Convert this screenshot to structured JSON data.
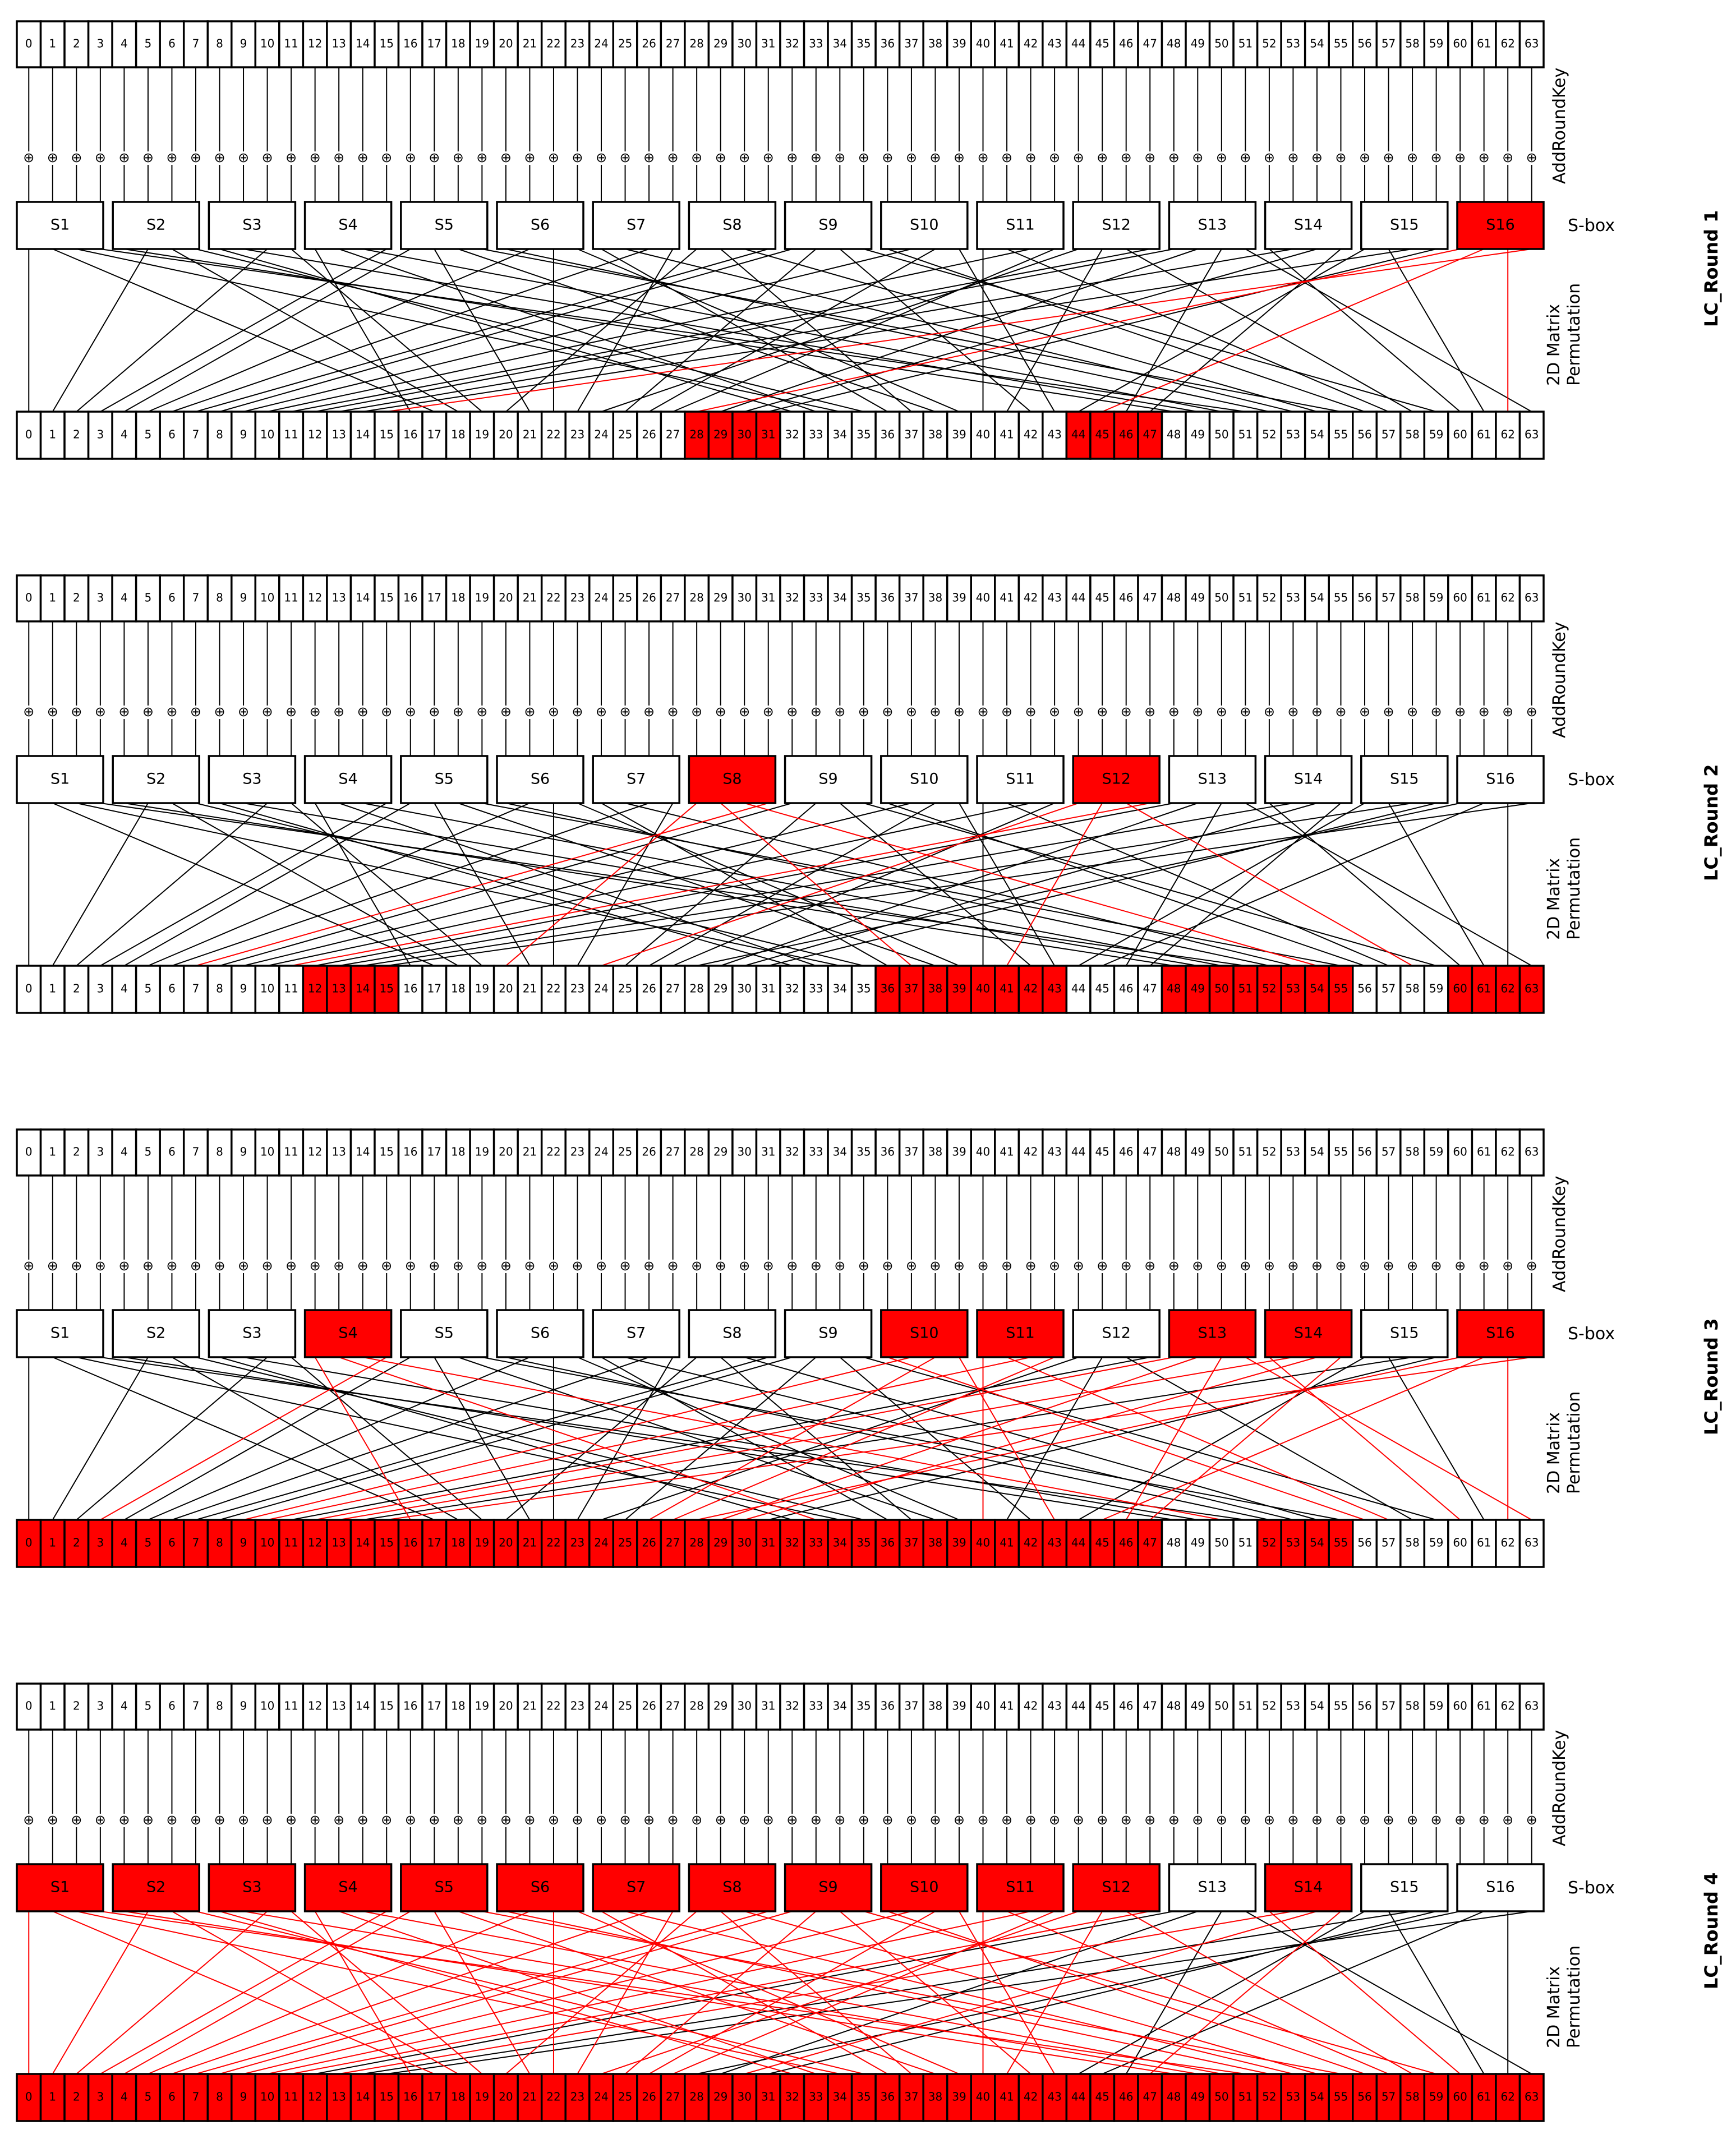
{
  "labels": {
    "addroundkey": "AddRoundKey",
    "sbox": "S-box",
    "perm_line1": "2D Matrix",
    "perm_line2": "Permutation",
    "xor_symbol": "⊕"
  },
  "colors": {
    "active": "#ff0000",
    "inactive": "#ffffff",
    "line_inactive": "#000000",
    "line_active": "#ff0000"
  },
  "permutation": [
    0,
    17,
    34,
    51,
    48,
    1,
    18,
    35,
    32,
    49,
    2,
    19,
    16,
    33,
    50,
    3,
    4,
    21,
    38,
    55,
    52,
    5,
    22,
    39,
    36,
    53,
    6,
    23,
    20,
    37,
    54,
    7,
    8,
    25,
    42,
    59,
    56,
    9,
    26,
    43,
    40,
    57,
    10,
    27,
    24,
    41,
    58,
    11,
    12,
    29,
    46,
    63,
    60,
    13,
    30,
    47,
    44,
    61,
    14,
    31,
    28,
    45,
    62,
    15
  ],
  "rounds": [
    {
      "title": "LC_Round 1",
      "active_sboxes": [
        16
      ],
      "active_output_bits": [
        28,
        29,
        30,
        31,
        44,
        45,
        46,
        47
      ]
    },
    {
      "title": "LC_Round 2",
      "active_sboxes": [
        8,
        12
      ],
      "active_output_bits": [
        12,
        13,
        14,
        15,
        36,
        37,
        38,
        39,
        40,
        41,
        42,
        43,
        48,
        49,
        50,
        51,
        52,
        53,
        54,
        55,
        60,
        61,
        62,
        63
      ]
    },
    {
      "title": "LC_Round 3",
      "active_sboxes": [
        4,
        10,
        11,
        13,
        14,
        16
      ],
      "active_output_bits": [
        0,
        1,
        2,
        3,
        4,
        5,
        6,
        7,
        8,
        9,
        10,
        11,
        12,
        13,
        14,
        15,
        16,
        17,
        18,
        19,
        20,
        21,
        22,
        23,
        24,
        25,
        26,
        27,
        28,
        29,
        30,
        31,
        32,
        33,
        34,
        35,
        36,
        37,
        38,
        39,
        40,
        41,
        42,
        43,
        44,
        45,
        46,
        47,
        52,
        53,
        54,
        55
      ]
    },
    {
      "title": "LC_Round 4",
      "active_sboxes": [
        1,
        2,
        3,
        4,
        5,
        6,
        7,
        8,
        9,
        10,
        11,
        12,
        14
      ],
      "active_output_bits": [
        0,
        1,
        2,
        3,
        4,
        5,
        6,
        7,
        8,
        9,
        10,
        11,
        12,
        13,
        14,
        15,
        16,
        17,
        18,
        19,
        20,
        21,
        22,
        23,
        24,
        25,
        26,
        27,
        28,
        29,
        30,
        31,
        32,
        33,
        34,
        35,
        36,
        37,
        38,
        39,
        40,
        41,
        42,
        43,
        44,
        45,
        46,
        47,
        48,
        49,
        50,
        51,
        52,
        53,
        54,
        55,
        56,
        57,
        58,
        59,
        60,
        61,
        62,
        63
      ]
    }
  ]
}
